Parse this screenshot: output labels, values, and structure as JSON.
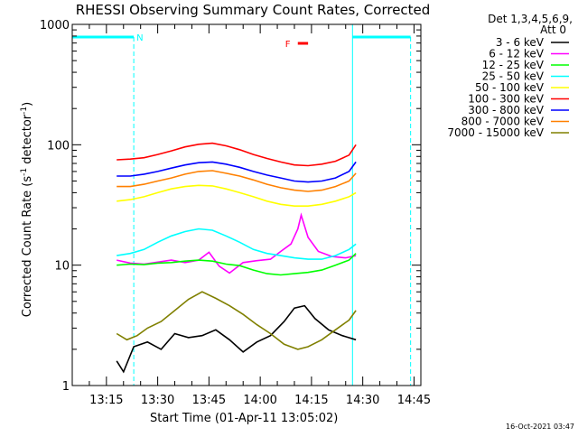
{
  "chart_data": {
    "type": "line",
    "title": "RHESSI Observing Summary Count Rates, Corrected",
    "xlabel": "Start Time (01-Apr-11 13:05:02)",
    "ylabel_main": "Corrected Count Rate (s",
    "ylabel_sup1": "-1",
    "ylabel_mid": " detector",
    "ylabel_sup2": "-1",
    "ylabel_end": ")",
    "yscale": "log",
    "ylim": [
      1,
      1000
    ],
    "xlim": [
      "13:05",
      "14:47"
    ],
    "y_ticks": [
      {
        "value": 1,
        "label": "1"
      },
      {
        "value": 10,
        "label": "10"
      },
      {
        "value": 100,
        "label": "100"
      },
      {
        "value": 1000,
        "label": "1000"
      }
    ],
    "x_ticks": [
      {
        "minute": 15,
        "label": "13:15"
      },
      {
        "minute": 30,
        "label": "13:30"
      },
      {
        "minute": 45,
        "label": "13:45"
      },
      {
        "minute": 60,
        "label": "14:00"
      },
      {
        "minute": 75,
        "label": "14:15"
      },
      {
        "minute": 90,
        "label": "14:30"
      },
      {
        "minute": 105,
        "label": "14:45"
      }
    ],
    "legend_header": [
      "Det 1,3,4,5,6,9,",
      "Att 0"
    ],
    "annotations": {
      "night_label": "N",
      "flare_label": "F",
      "footer": "16-Oct-2021 03:47"
    },
    "night_segments": [
      {
        "start": "13:05",
        "end": "13:23"
      },
      {
        "start": "14:27",
        "end": "14:44"
      }
    ],
    "flare_flag": {
      "start": "14:11",
      "end": "14:14"
    },
    "series": [
      {
        "name": "3 - 6 keV",
        "color": "#000000",
        "points": [
          [
            "13:18",
            1.6
          ],
          [
            "13:20",
            1.3
          ],
          [
            "13:23",
            2.1
          ],
          [
            "13:27",
            2.3
          ],
          [
            "13:31",
            2.0
          ],
          [
            "13:35",
            2.7
          ],
          [
            "13:39",
            2.5
          ],
          [
            "13:43",
            2.6
          ],
          [
            "13:47",
            2.9
          ],
          [
            "13:51",
            2.4
          ],
          [
            "13:55",
            1.9
          ],
          [
            "13:59",
            2.3
          ],
          [
            "14:03",
            2.6
          ],
          [
            "14:07",
            3.4
          ],
          [
            "14:10",
            4.4
          ],
          [
            "14:13",
            4.6
          ],
          [
            "14:16",
            3.6
          ],
          [
            "14:20",
            2.9
          ],
          [
            "14:24",
            2.6
          ],
          [
            "14:28",
            2.4
          ]
        ]
      },
      {
        "name": "6 - 12 keV",
        "color": "#ff00ff",
        "points": [
          [
            "13:18",
            11.0
          ],
          [
            "13:22",
            10.4
          ],
          [
            "13:26",
            10.2
          ],
          [
            "13:30",
            10.6
          ],
          [
            "13:34",
            11.0
          ],
          [
            "13:38",
            10.5
          ],
          [
            "13:42",
            11.0
          ],
          [
            "13:45",
            12.8
          ],
          [
            "13:48",
            9.8
          ],
          [
            "13:51",
            8.6
          ],
          [
            "13:55",
            10.5
          ],
          [
            "13:59",
            10.9
          ],
          [
            "14:03",
            11.2
          ],
          [
            "14:06",
            13.0
          ],
          [
            "14:09",
            15.0
          ],
          [
            "14:11",
            20.0
          ],
          [
            "14:12",
            26.0
          ],
          [
            "14:14",
            17.0
          ],
          [
            "14:17",
            13.0
          ],
          [
            "14:21",
            11.8
          ],
          [
            "14:25",
            11.5
          ],
          [
            "14:28",
            12.0
          ]
        ]
      },
      {
        "name": "12 - 25 keV",
        "color": "#00ff00",
        "points": [
          [
            "13:18",
            10.0
          ],
          [
            "13:22",
            10.2
          ],
          [
            "13:26",
            10.1
          ],
          [
            "13:30",
            10.4
          ],
          [
            "13:34",
            10.5
          ],
          [
            "13:38",
            10.8
          ],
          [
            "13:42",
            11.0
          ],
          [
            "13:46",
            10.8
          ],
          [
            "13:50",
            10.2
          ],
          [
            "13:54",
            9.9
          ],
          [
            "13:58",
            9.1
          ],
          [
            "14:02",
            8.5
          ],
          [
            "14:06",
            8.3
          ],
          [
            "14:10",
            8.5
          ],
          [
            "14:14",
            8.7
          ],
          [
            "14:18",
            9.1
          ],
          [
            "14:22",
            10.0
          ],
          [
            "14:26",
            11.0
          ],
          [
            "14:28",
            12.5
          ]
        ]
      },
      {
        "name": "25 - 50 keV",
        "color": "#00ffff",
        "points": [
          [
            "13:18",
            12.0
          ],
          [
            "13:22",
            12.5
          ],
          [
            "13:26",
            13.5
          ],
          [
            "13:30",
            15.5
          ],
          [
            "13:34",
            17.5
          ],
          [
            "13:38",
            19.0
          ],
          [
            "13:42",
            20.0
          ],
          [
            "13:46",
            19.5
          ],
          [
            "13:50",
            17.5
          ],
          [
            "13:54",
            15.5
          ],
          [
            "13:58",
            13.5
          ],
          [
            "14:02",
            12.5
          ],
          [
            "14:06",
            12.0
          ],
          [
            "14:10",
            11.5
          ],
          [
            "14:14",
            11.2
          ],
          [
            "14:18",
            11.2
          ],
          [
            "14:22",
            12.0
          ],
          [
            "14:26",
            13.5
          ],
          [
            "14:28",
            15.0
          ]
        ]
      },
      {
        "name": "50 - 100 keV",
        "color": "#ffff00",
        "points": [
          [
            "13:18",
            34
          ],
          [
            "13:22",
            35
          ],
          [
            "13:26",
            37
          ],
          [
            "13:30",
            40
          ],
          [
            "13:34",
            43
          ],
          [
            "13:38",
            45
          ],
          [
            "13:42",
            46
          ],
          [
            "13:46",
            45.5
          ],
          [
            "13:50",
            43
          ],
          [
            "13:54",
            40
          ],
          [
            "13:58",
            37
          ],
          [
            "14:02",
            34
          ],
          [
            "14:06",
            32
          ],
          [
            "14:10",
            31
          ],
          [
            "14:14",
            31
          ],
          [
            "14:18",
            32
          ],
          [
            "14:22",
            34
          ],
          [
            "14:26",
            37
          ],
          [
            "14:28",
            40
          ]
        ]
      },
      {
        "name": "100 - 300 keV",
        "color": "#ff0000",
        "points": [
          [
            "13:18",
            75
          ],
          [
            "13:22",
            76
          ],
          [
            "13:26",
            78
          ],
          [
            "13:30",
            83
          ],
          [
            "13:34",
            89
          ],
          [
            "13:38",
            96
          ],
          [
            "13:42",
            101
          ],
          [
            "13:46",
            103
          ],
          [
            "13:50",
            98
          ],
          [
            "13:54",
            91
          ],
          [
            "13:58",
            83
          ],
          [
            "14:02",
            77
          ],
          [
            "14:06",
            72
          ],
          [
            "14:10",
            68
          ],
          [
            "14:14",
            67
          ],
          [
            "14:18",
            69
          ],
          [
            "14:22",
            73
          ],
          [
            "14:26",
            82
          ],
          [
            "14:28",
            100
          ]
        ]
      },
      {
        "name": "300 - 800 keV",
        "color": "#0000ff",
        "points": [
          [
            "13:18",
            55
          ],
          [
            "13:22",
            55
          ],
          [
            "13:26",
            57
          ],
          [
            "13:30",
            60
          ],
          [
            "13:34",
            64
          ],
          [
            "13:38",
            68
          ],
          [
            "13:42",
            71
          ],
          [
            "13:46",
            72
          ],
          [
            "13:50",
            69
          ],
          [
            "13:54",
            65
          ],
          [
            "13:58",
            60
          ],
          [
            "14:02",
            56
          ],
          [
            "14:06",
            53
          ],
          [
            "14:10",
            50
          ],
          [
            "14:14",
            49
          ],
          [
            "14:18",
            50
          ],
          [
            "14:22",
            53
          ],
          [
            "14:26",
            60
          ],
          [
            "14:28",
            72
          ]
        ]
      },
      {
        "name": "800 - 7000 keV",
        "color": "#ff8000",
        "points": [
          [
            "13:18",
            45
          ],
          [
            "13:22",
            45
          ],
          [
            "13:26",
            47
          ],
          [
            "13:30",
            50
          ],
          [
            "13:34",
            53
          ],
          [
            "13:38",
            57
          ],
          [
            "13:42",
            60
          ],
          [
            "13:46",
            61
          ],
          [
            "13:50",
            58
          ],
          [
            "13:54",
            55
          ],
          [
            "13:58",
            51
          ],
          [
            "14:02",
            47
          ],
          [
            "14:06",
            44
          ],
          [
            "14:10",
            42
          ],
          [
            "14:14",
            41
          ],
          [
            "14:18",
            42
          ],
          [
            "14:22",
            45
          ],
          [
            "14:26",
            50
          ],
          [
            "14:28",
            58
          ]
        ]
      },
      {
        "name": "7000 - 15000 keV",
        "color": "#808000",
        "points": [
          [
            "13:18",
            2.7
          ],
          [
            "13:21",
            2.4
          ],
          [
            "13:24",
            2.6
          ],
          [
            "13:27",
            3.0
          ],
          [
            "13:31",
            3.4
          ],
          [
            "13:35",
            4.2
          ],
          [
            "13:39",
            5.2
          ],
          [
            "13:43",
            6.0
          ],
          [
            "13:47",
            5.3
          ],
          [
            "13:51",
            4.6
          ],
          [
            "13:55",
            3.9
          ],
          [
            "13:59",
            3.2
          ],
          [
            "14:03",
            2.7
          ],
          [
            "14:07",
            2.2
          ],
          [
            "14:11",
            2.0
          ],
          [
            "14:14",
            2.1
          ],
          [
            "14:18",
            2.4
          ],
          [
            "14:22",
            2.9
          ],
          [
            "14:26",
            3.5
          ],
          [
            "14:28",
            4.2
          ]
        ]
      }
    ]
  }
}
